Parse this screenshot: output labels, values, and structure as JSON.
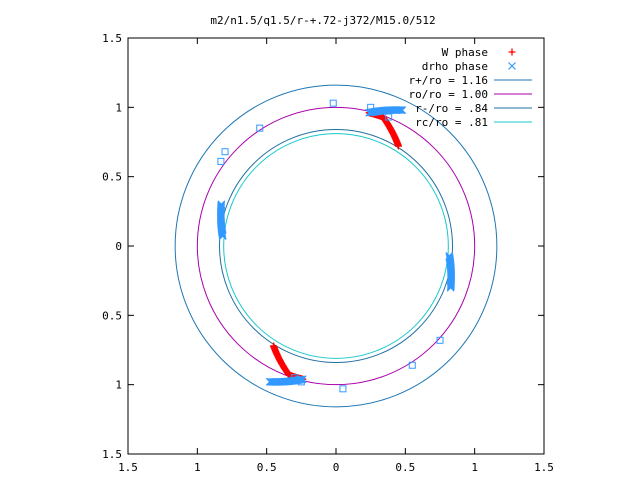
{
  "chart_data": {
    "type": "scatter",
    "title": "m2/n1.5/q1.5/r-+.72-j372/M15.0/512",
    "xlabel": "",
    "ylabel": "",
    "xlim": [
      -1.5,
      1.5
    ],
    "ylim": [
      -1.5,
      1.5
    ],
    "x_ticks": [
      -1.5,
      -1,
      -0.5,
      0,
      0.5,
      1,
      1.5
    ],
    "y_ticks": [
      -1.5,
      -1,
      -0.5,
      0,
      0.5,
      1,
      1.5
    ],
    "x_tick_labels": [
      "1.5",
      "1",
      "0.5",
      "0",
      "0.5",
      "1",
      "1.5"
    ],
    "y_tick_labels": [
      "1.5",
      "1",
      "0.5",
      "0",
      "0.5",
      "1",
      "1.5"
    ],
    "grid": false,
    "legend_position": "top-right",
    "series": [
      {
        "name": "W phase",
        "marker": "+",
        "color": "#ff0000",
        "arcs": [
          {
            "angle_start_deg": 76,
            "angle_end_deg": 70,
            "steps": 22,
            "r_start": 0.99,
            "r_end": 0.99
          },
          {
            "angle_start_deg": 70,
            "angle_end_deg": 58,
            "steps": 30,
            "r_start": 0.99,
            "r_end": 0.85
          },
          {
            "angle_start_deg": 256,
            "angle_end_deg": 250,
            "steps": 22,
            "r_start": 0.99,
            "r_end": 0.99
          },
          {
            "angle_start_deg": 250,
            "angle_end_deg": 238,
            "steps": 30,
            "r_start": 0.99,
            "r_end": 0.85
          }
        ]
      },
      {
        "name": "drho phase",
        "marker": "x",
        "color": "#3399ff",
        "arcs": [
          {
            "angle_start_deg": 76,
            "angle_end_deg": 64,
            "steps": 30,
            "r_start": 0.99,
            "r_end": 1.09
          },
          {
            "angle_start_deg": 256,
            "angle_end_deg": 244,
            "steps": 30,
            "r_start": 0.99,
            "r_end": 1.09
          },
          {
            "angle_start_deg": 175,
            "angle_end_deg": 160,
            "steps": 30,
            "r_start": 0.82,
            "r_end": 0.88
          },
          {
            "angle_start_deg": 355,
            "angle_end_deg": 340,
            "steps": 30,
            "r_start": 0.82,
            "r_end": 0.88
          }
        ],
        "isolated_points": [
          [
            -0.02,
            1.03
          ],
          [
            -0.55,
            0.85
          ],
          [
            -0.8,
            0.68
          ],
          [
            -0.83,
            0.61
          ],
          [
            0.25,
            1.0
          ],
          [
            0.38,
            0.93
          ],
          [
            0.05,
            -1.03
          ],
          [
            0.55,
            -0.86
          ],
          [
            0.75,
            -0.68
          ],
          [
            -0.25,
            -0.98
          ],
          [
            -0.3,
            -0.95
          ]
        ]
      }
    ],
    "circles": [
      {
        "name": "r+/ro = 1.16",
        "radius": 1.16,
        "color": "#1f77b4"
      },
      {
        "name": "ro/ro = 1.00",
        "radius": 1.0,
        "color": "#aa00aa"
      },
      {
        "name": "r-/ro = .84",
        "radius": 0.84,
        "color": "#1f6f9f"
      },
      {
        "name": "rc/ro = .81",
        "radius": 0.81,
        "color": "#19c8c8"
      }
    ]
  }
}
